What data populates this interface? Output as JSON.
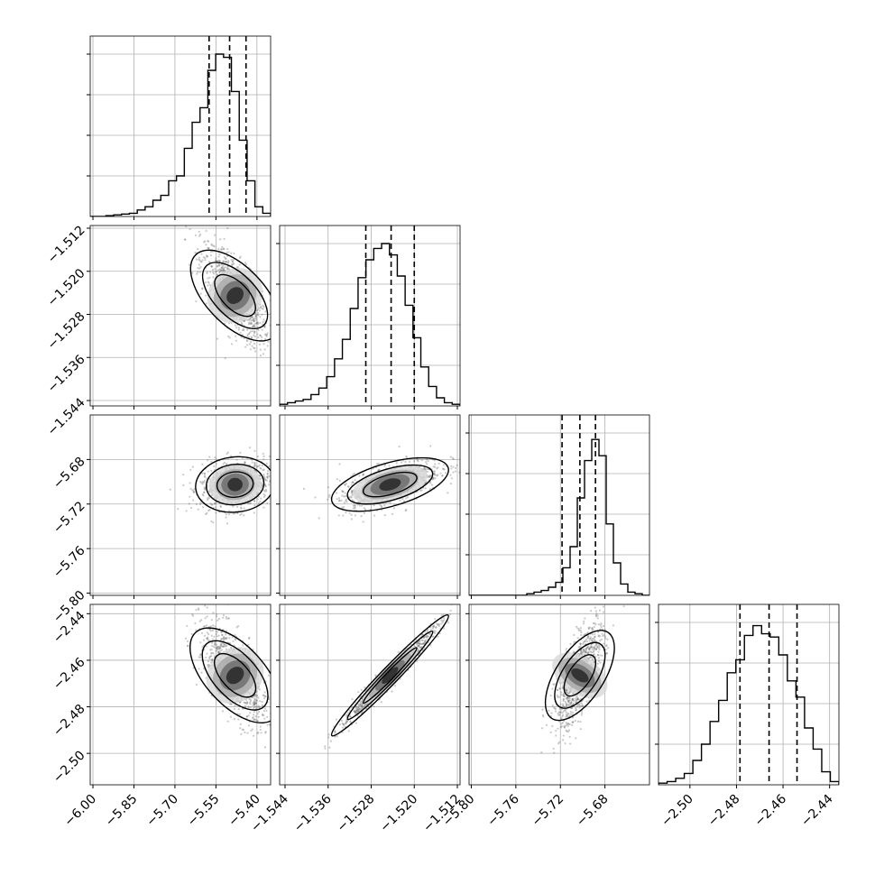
{
  "chart_data": {
    "type": "corner",
    "parameters": [
      {
        "ticks": [
          "−6.00",
          "−5.85",
          "−5.70",
          "−5.55",
          "−5.40"
        ],
        "range": [
          -6.01,
          -5.35
        ],
        "mean": -5.48,
        "sd": 0.06,
        "quantiles": [
          -5.575,
          -5.5,
          -5.44
        ],
        "hist": [
          0,
          0,
          0.005,
          0.01,
          0.015,
          0.02,
          0.04,
          0.06,
          0.1,
          0.13,
          0.22,
          0.25,
          0.42,
          0.58,
          0.67,
          0.9,
          1.0,
          0.98,
          0.77,
          0.47,
          0.22,
          0.06,
          0.02
        ]
      },
      {
        "ticks": [
          "−1.544",
          "−1.536",
          "−1.528",
          "−1.520",
          "−1.512"
        ],
        "range": [
          -1.545,
          -1.5115
        ],
        "mean": -1.5245,
        "sd": 0.0045,
        "quantiles": [
          -1.529,
          -1.5243,
          -1.52
        ],
        "hist": [
          0.01,
          0.02,
          0.03,
          0.04,
          0.07,
          0.11,
          0.18,
          0.29,
          0.41,
          0.6,
          0.79,
          0.9,
          0.97,
          1.0,
          0.93,
          0.8,
          0.62,
          0.42,
          0.24,
          0.12,
          0.05,
          0.02,
          0.01
        ]
      },
      {
        "ticks": [
          "−5.80",
          "−5.76",
          "−5.72",
          "−5.68"
        ],
        "range": [
          -5.802,
          -5.64
        ],
        "mean": -5.7025,
        "sd": 0.0105,
        "quantiles": [
          -5.7185,
          -5.7025,
          -5.6885
        ],
        "hist": [
          0,
          0,
          0,
          0,
          0,
          0,
          0,
          0,
          0.01,
          0.02,
          0.03,
          0.05,
          0.08,
          0.17,
          0.3,
          0.6,
          0.83,
          0.96,
          0.86,
          0.44,
          0.2,
          0.07,
          0.02,
          0.01,
          0
        ]
      },
      {
        "ticks": [
          "−2.50",
          "−2.48",
          "−2.46",
          "−2.44"
        ],
        "range": [
          -2.5135,
          -2.436
        ],
        "mean": -2.4665,
        "sd": 0.011,
        "quantiles": [
          -2.4785,
          -2.466,
          -2.454
        ],
        "hist": [
          0.01,
          0.02,
          0.04,
          0.07,
          0.15,
          0.25,
          0.39,
          0.52,
          0.69,
          0.77,
          0.92,
          0.98,
          0.93,
          0.91,
          0.8,
          0.64,
          0.54,
          0.35,
          0.22,
          0.08,
          0.02
        ]
      }
    ],
    "correlations": [
      [
        1,
        -0.7,
        0.15,
        -0.7
      ],
      [
        -0.7,
        1,
        0.6,
        0.98
      ],
      [
        0.15,
        0.6,
        1,
        0.7
      ],
      [
        -0.7,
        0.98,
        0.7,
        1
      ]
    ],
    "axis_labels": [],
    "grid": true,
    "colors": {
      "line": "#000000",
      "points": "#666666",
      "grid": "#b0b0b0"
    }
  }
}
